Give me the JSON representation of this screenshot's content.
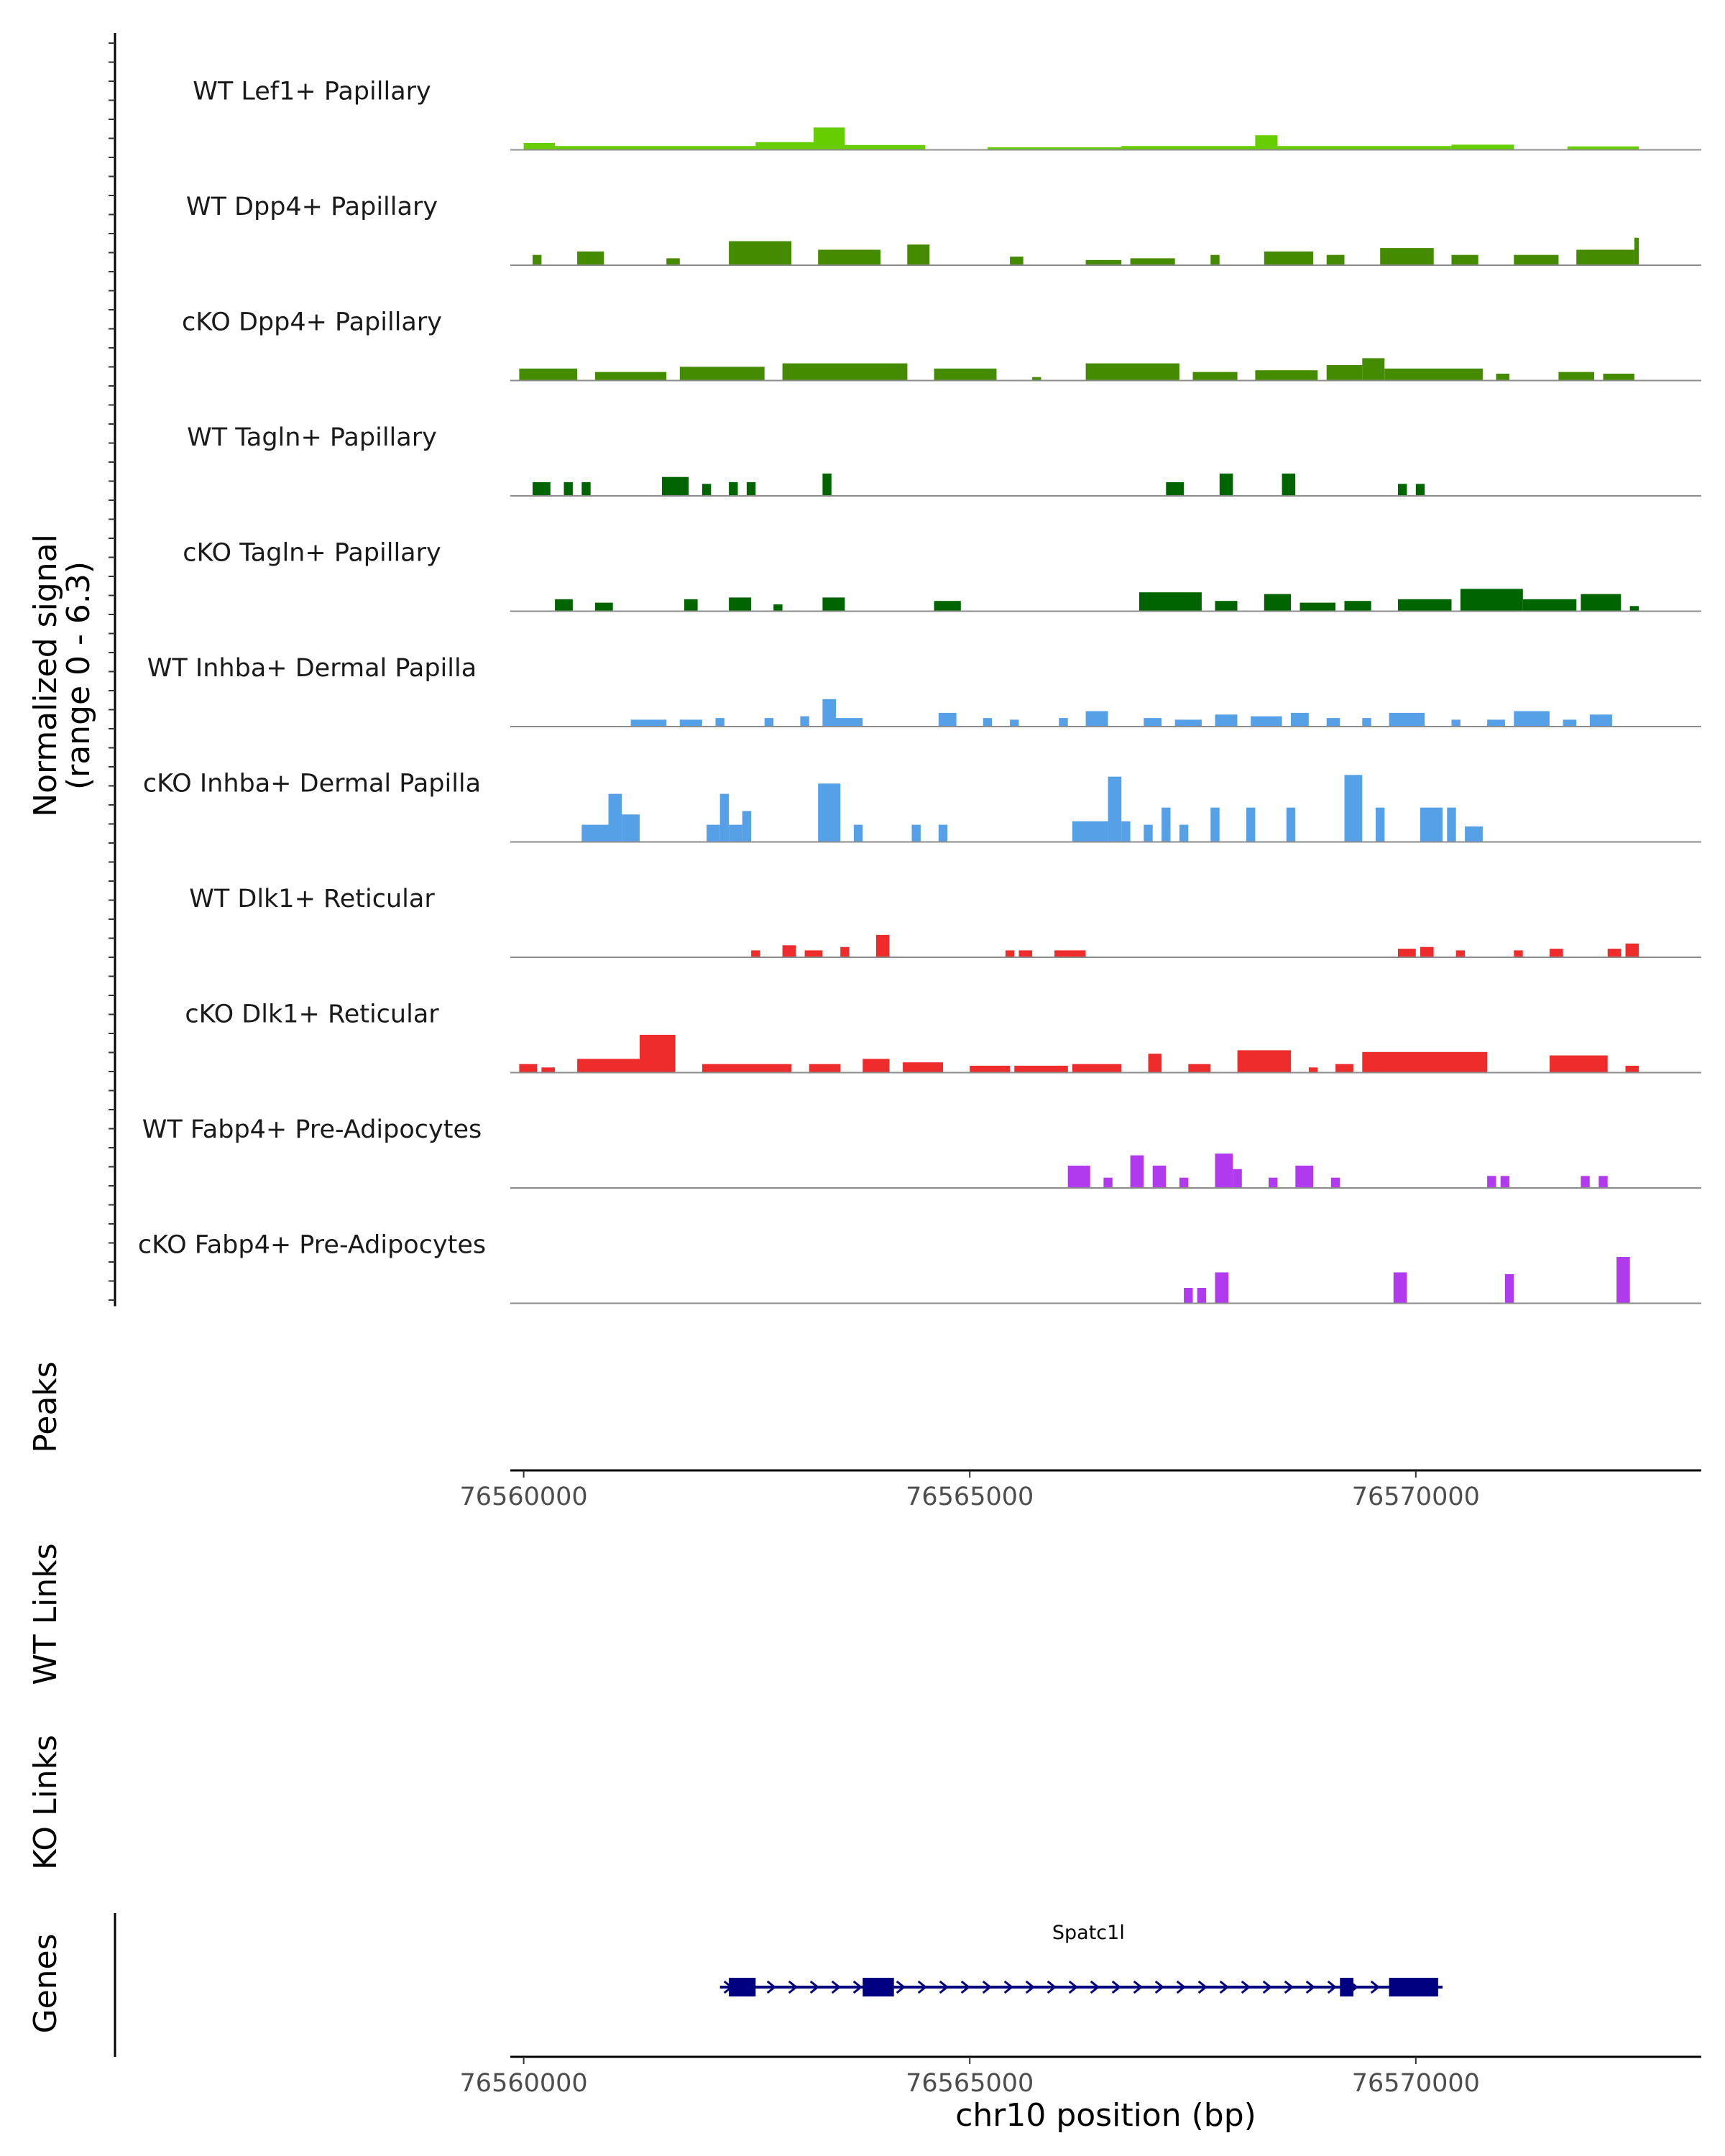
{
  "chart_data": {
    "type": "area",
    "coverage_ylabel": [
      "Normalized signal",
      "(range 0 - 6.3)"
    ],
    "tracks": [
      {
        "name": "WT Lef1+ Papillary",
        "color": "#66CD00",
        "segments": [
          [
            76560000,
            76560350,
            0.4
          ],
          [
            76560350,
            76562600,
            0.22
          ],
          [
            76562600,
            76563250,
            0.45
          ],
          [
            76563250,
            76563600,
            1.3
          ],
          [
            76563600,
            76564500,
            0.28
          ],
          [
            76565200,
            76566700,
            0.15
          ],
          [
            76566700,
            76568200,
            0.22
          ],
          [
            76568200,
            76568450,
            0.85
          ],
          [
            76568450,
            76570400,
            0.22
          ],
          [
            76570400,
            76571100,
            0.3
          ],
          [
            76571700,
            76572500,
            0.2
          ]
        ]
      },
      {
        "name": "WT Dpp4+ Papillary",
        "color": "#458B00",
        "segments": [
          [
            76560100,
            76560200,
            0.6
          ],
          [
            76560600,
            76560900,
            0.8
          ],
          [
            76561600,
            76561750,
            0.4
          ],
          [
            76562300,
            76563000,
            1.4
          ],
          [
            76563300,
            76564000,
            0.9
          ],
          [
            76564300,
            76564550,
            1.2
          ],
          [
            76565450,
            76565600,
            0.5
          ],
          [
            76566300,
            76566700,
            0.3
          ],
          [
            76566800,
            76567300,
            0.4
          ],
          [
            76567700,
            76567800,
            0.6
          ],
          [
            76568300,
            76568850,
            0.8
          ],
          [
            76569000,
            76569200,
            0.6
          ],
          [
            76569600,
            76570200,
            1.0
          ],
          [
            76570400,
            76570700,
            0.6
          ],
          [
            76571100,
            76571600,
            0.6
          ],
          [
            76571800,
            76572450,
            0.9
          ],
          [
            76572450,
            76572500,
            1.6
          ]
        ]
      },
      {
        "name": "cKO Dpp4+ Papillary",
        "color": "#458B00",
        "segments": [
          [
            76559950,
            76560600,
            0.7
          ],
          [
            76560800,
            76561600,
            0.5
          ],
          [
            76561750,
            76562700,
            0.8
          ],
          [
            76562900,
            76564300,
            1.0
          ],
          [
            76564600,
            76565300,
            0.7
          ],
          [
            76565700,
            76565800,
            0.2
          ],
          [
            76566300,
            76567350,
            1.0
          ],
          [
            76567500,
            76568000,
            0.5
          ],
          [
            76568200,
            76568900,
            0.6
          ],
          [
            76569000,
            76569400,
            0.9
          ],
          [
            76569400,
            76569650,
            1.3
          ],
          [
            76569650,
            76570750,
            0.7
          ],
          [
            76570900,
            76571050,
            0.4
          ],
          [
            76571600,
            76572000,
            0.5
          ],
          [
            76572100,
            76572450,
            0.4
          ]
        ]
      },
      {
        "name": "WT Tagln+ Papillary",
        "color": "#006400",
        "segments": [
          [
            76560100,
            76560300,
            0.8
          ],
          [
            76560450,
            76560550,
            0.8
          ],
          [
            76560650,
            76560750,
            0.8
          ],
          [
            76561550,
            76561850,
            1.1
          ],
          [
            76562000,
            76562100,
            0.7
          ],
          [
            76562300,
            76562400,
            0.8
          ],
          [
            76562500,
            76562600,
            0.8
          ],
          [
            76563350,
            76563450,
            1.3
          ],
          [
            76567200,
            76567400,
            0.8
          ],
          [
            76567800,
            76567950,
            1.3
          ],
          [
            76568500,
            76568650,
            1.3
          ],
          [
            76569800,
            76569900,
            0.7
          ],
          [
            76570000,
            76570100,
            0.7
          ]
        ]
      },
      {
        "name": "cKO Tagln+ Papillary",
        "color": "#006400",
        "segments": [
          [
            76560350,
            76560550,
            0.7
          ],
          [
            76560800,
            76561000,
            0.5
          ],
          [
            76561800,
            76561950,
            0.7
          ],
          [
            76562300,
            76562550,
            0.8
          ],
          [
            76562800,
            76562900,
            0.4
          ],
          [
            76563350,
            76563600,
            0.8
          ],
          [
            76564600,
            76564900,
            0.6
          ],
          [
            76566900,
            76567600,
            1.1
          ],
          [
            76567750,
            76568000,
            0.6
          ],
          [
            76568300,
            76568600,
            1.0
          ],
          [
            76568700,
            76569100,
            0.5
          ],
          [
            76569200,
            76569500,
            0.6
          ],
          [
            76569800,
            76570400,
            0.7
          ],
          [
            76570500,
            76571200,
            1.3
          ],
          [
            76571200,
            76571800,
            0.7
          ],
          [
            76571850,
            76572300,
            1.0
          ],
          [
            76572400,
            76572500,
            0.3
          ]
        ]
      },
      {
        "name": "WT Inhba+ Dermal Papilla",
        "color": "#56A0E8",
        "segments": [
          [
            76561200,
            76561600,
            0.4
          ],
          [
            76561750,
            76562000,
            0.4
          ],
          [
            76562150,
            76562250,
            0.5
          ],
          [
            76562700,
            76562800,
            0.5
          ],
          [
            76563100,
            76563200,
            0.6
          ],
          [
            76563350,
            76563500,
            1.6
          ],
          [
            76563500,
            76563800,
            0.5
          ],
          [
            76564650,
            76564850,
            0.8
          ],
          [
            76565150,
            76565250,
            0.5
          ],
          [
            76565450,
            76565550,
            0.4
          ],
          [
            76566000,
            76566100,
            0.5
          ],
          [
            76566300,
            76566550,
            0.9
          ],
          [
            76566950,
            76567150,
            0.5
          ],
          [
            76567300,
            76567600,
            0.4
          ],
          [
            76567750,
            76568000,
            0.7
          ],
          [
            76568150,
            76568500,
            0.6
          ],
          [
            76568600,
            76568800,
            0.8
          ],
          [
            76569000,
            76569150,
            0.5
          ],
          [
            76569400,
            76569500,
            0.5
          ],
          [
            76569700,
            76570100,
            0.8
          ],
          [
            76570400,
            76570500,
            0.4
          ],
          [
            76570800,
            76571000,
            0.4
          ],
          [
            76571100,
            76571500,
            0.9
          ],
          [
            76571650,
            76571800,
            0.4
          ],
          [
            76571950,
            76572200,
            0.7
          ]
        ]
      },
      {
        "name": "cKO Inhba+ Dermal Papilla",
        "color": "#56A0E8",
        "segments": [
          [
            76560650,
            76560950,
            1.0
          ],
          [
            76560950,
            76561100,
            2.8
          ],
          [
            76561100,
            76561300,
            1.6
          ],
          [
            76562050,
            76562200,
            1.0
          ],
          [
            76562200,
            76562300,
            2.8
          ],
          [
            76562300,
            76562450,
            1.0
          ],
          [
            76562450,
            76562550,
            1.8
          ],
          [
            76563300,
            76563550,
            3.4
          ],
          [
            76563700,
            76563800,
            1.0
          ],
          [
            76564350,
            76564450,
            1.0
          ],
          [
            76564650,
            76564750,
            1.0
          ],
          [
            76566150,
            76566550,
            1.2
          ],
          [
            76566550,
            76566700,
            3.8
          ],
          [
            76566700,
            76566800,
            1.2
          ],
          [
            76566950,
            76567050,
            1.0
          ],
          [
            76567150,
            76567250,
            2.0
          ],
          [
            76567350,
            76567450,
            1.0
          ],
          [
            76567700,
            76567800,
            2.0
          ],
          [
            76568100,
            76568200,
            2.0
          ],
          [
            76568550,
            76568650,
            2.0
          ],
          [
            76569200,
            76569400,
            3.9
          ],
          [
            76569550,
            76569650,
            2.0
          ],
          [
            76570050,
            76570300,
            2.0
          ],
          [
            76570350,
            76570450,
            2.0
          ],
          [
            76570550,
            76570750,
            0.9
          ]
        ]
      },
      {
        "name": "WT Dlk1+ Reticular",
        "color": "#EE2C2C",
        "segments": [
          [
            76562550,
            76562650,
            0.4
          ],
          [
            76562900,
            76563050,
            0.7
          ],
          [
            76563150,
            76563350,
            0.4
          ],
          [
            76563550,
            76563650,
            0.6
          ],
          [
            76563950,
            76564100,
            1.3
          ],
          [
            76565400,
            76565500,
            0.4
          ],
          [
            76565550,
            76565700,
            0.4
          ],
          [
            76565950,
            76566300,
            0.4
          ],
          [
            76569800,
            76570000,
            0.5
          ],
          [
            76570050,
            76570200,
            0.6
          ],
          [
            76570450,
            76570550,
            0.4
          ],
          [
            76571100,
            76571200,
            0.4
          ],
          [
            76571500,
            76571650,
            0.5
          ],
          [
            76572150,
            76572300,
            0.5
          ],
          [
            76572350,
            76572500,
            0.8
          ]
        ]
      },
      {
        "name": "cKO Dlk1+ Reticular",
        "color": "#EE2C2C",
        "segments": [
          [
            76559950,
            76560150,
            0.5
          ],
          [
            76560200,
            76560350,
            0.3
          ],
          [
            76560600,
            76561300,
            0.8
          ],
          [
            76561300,
            76561700,
            2.2
          ],
          [
            76562000,
            76563000,
            0.5
          ],
          [
            76563200,
            76563550,
            0.5
          ],
          [
            76563800,
            76564100,
            0.8
          ],
          [
            76564250,
            76564700,
            0.6
          ],
          [
            76565000,
            76565450,
            0.4
          ],
          [
            76565500,
            76566100,
            0.4
          ],
          [
            76566150,
            76566700,
            0.5
          ],
          [
            76567000,
            76567150,
            1.1
          ],
          [
            76567450,
            76567700,
            0.5
          ],
          [
            76568000,
            76568600,
            1.3
          ],
          [
            76568800,
            76568900,
            0.3
          ],
          [
            76569100,
            76569300,
            0.5
          ],
          [
            76569400,
            76570800,
            1.2
          ],
          [
            76571500,
            76572150,
            1.0
          ],
          [
            76572350,
            76572500,
            0.4
          ]
        ]
      },
      {
        "name": "WT Fabp4+ Pre-Adipocytes",
        "color": "#B23AEE",
        "segments": [
          [
            76566100,
            76566350,
            1.3
          ],
          [
            76566500,
            76566600,
            0.6
          ],
          [
            76566800,
            76566950,
            1.9
          ],
          [
            76567050,
            76567200,
            1.3
          ],
          [
            76567350,
            76567450,
            0.6
          ],
          [
            76567750,
            76567950,
            2.0
          ],
          [
            76567950,
            76568050,
            1.1
          ],
          [
            76568350,
            76568450,
            0.6
          ],
          [
            76568650,
            76568850,
            1.3
          ],
          [
            76569050,
            76569150,
            0.6
          ],
          [
            76570800,
            76570900,
            0.7
          ],
          [
            76570950,
            76571050,
            0.7
          ],
          [
            76571850,
            76571950,
            0.7
          ],
          [
            76572050,
            76572150,
            0.7
          ]
        ]
      },
      {
        "name": "cKO Fabp4+ Pre-Adipocytes",
        "color": "#B23AEE",
        "segments": [
          [
            76567400,
            76567500,
            0.9
          ],
          [
            76567550,
            76567650,
            0.9
          ],
          [
            76567750,
            76567900,
            1.8
          ],
          [
            76569750,
            76569900,
            1.8
          ],
          [
            76571000,
            76571100,
            1.7
          ],
          [
            76572250,
            76572400,
            2.7
          ]
        ]
      }
    ],
    "coverage_ylim": [
      0,
      6.3
    ],
    "x_range": [
      76559850,
      76573200
    ],
    "x_ticks": [
      76560000,
      76565000,
      76570000
    ],
    "x_tick_labels": [
      "76560000",
      "76565000",
      "76570000"
    ],
    "empty_tracks": [
      "Peaks",
      "WT Links",
      "KO Links"
    ],
    "genes_label": "Genes",
    "genes": [
      {
        "name": "Spatc1l",
        "start": 76562200,
        "end": 76570300,
        "strand": "+",
        "exons": [
          [
            76562300,
            76562600
          ],
          [
            76563800,
            76564150
          ],
          [
            76569150,
            76569300
          ],
          [
            76569700,
            76570250
          ]
        ]
      }
    ],
    "gene_color": "#000080",
    "xlabel": "chr10 position (bp)"
  }
}
